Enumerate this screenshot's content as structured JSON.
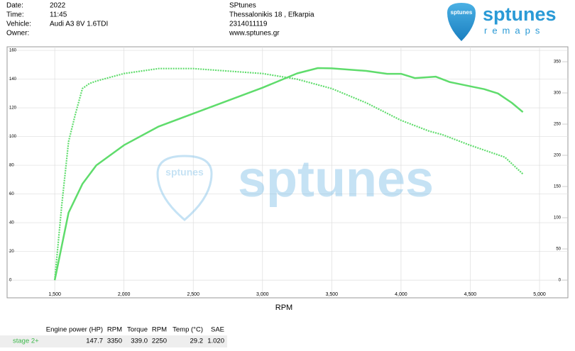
{
  "header": {
    "fields": [
      {
        "label": "Date:",
        "value": "2022"
      },
      {
        "label": "Time:",
        "value": "11:45"
      },
      {
        "label": "Vehicle:",
        "value": "Audi A3 8V 1.6TDI"
      },
      {
        "label": "Owner:"
      }
    ]
  },
  "company": [
    "SPtunes",
    "Thessalonikis 18 , Efkarpia",
    "2314011119",
    "www.sptunes.gr"
  ],
  "logo": {
    "name": "sptunes",
    "tagline": "remaps"
  },
  "chart_data": {
    "type": "line",
    "x_label": "RPM",
    "xlim": [
      1156,
      5205
    ],
    "xticks": [
      {
        "value": 1500,
        "label": "1,500"
      },
      {
        "value": 2000,
        "label": "2,000"
      },
      {
        "value": 2500,
        "label": "2,500"
      },
      {
        "value": 3000,
        "label": "3,000"
      },
      {
        "value": 3500,
        "label": "3,500"
      },
      {
        "value": 4000,
        "label": "4,000"
      },
      {
        "value": 4500,
        "label": "4,500"
      },
      {
        "value": 5000,
        "label": "5,000"
      }
    ],
    "ylim": [
      -12.3,
      162.5
    ],
    "yticks": [
      0,
      20,
      40,
      60,
      80,
      100,
      120,
      140,
      160
    ],
    "y2lim": [
      -28.4,
      373.9
    ],
    "y2ticks": [
      0,
      50,
      100,
      150,
      200,
      250,
      300,
      350
    ],
    "grid": true,
    "series": [
      {
        "color": "#5fdc6c",
        "style": "solid",
        "x": [
          1500,
          1600,
          1700,
          1800,
          2000,
          2250,
          2500,
          2750,
          3000,
          3250,
          3400,
          3500,
          3750,
          3900,
          4000,
          4100,
          4250,
          4350,
          4500,
          4600,
          4700,
          4800,
          4880
        ],
        "values": [
          0,
          47,
          67,
          80,
          94,
          107,
          116,
          125,
          134,
          144,
          147.7,
          147.5,
          145.7,
          143.7,
          143.7,
          140.7,
          141.7,
          138,
          135,
          133,
          130,
          123.5,
          117
        ]
      },
      {
        "color": "#5fdc6c",
        "style": "dotted",
        "axis": "y2",
        "x": [
          1500,
          1550,
          1600,
          1650,
          1700,
          1750,
          1800,
          2000,
          2250,
          2500,
          2750,
          3000,
          3250,
          3500,
          3750,
          4000,
          4200,
          4300,
          4500,
          4750,
          4880
        ],
        "values": [
          0,
          119,
          222,
          267,
          307,
          315,
          319,
          331,
          339,
          339,
          335,
          331,
          322,
          307,
          284,
          256,
          239,
          233,
          216,
          197,
          170
        ]
      }
    ]
  },
  "table": {
    "columns": [
      "Engine power (HP)",
      "RPM",
      "Torque",
      "RPM",
      "Temp (°C)",
      "SAE"
    ],
    "rows": [
      [
        "stage 2+",
        "147.7",
        "3350",
        "339.0",
        "2250",
        "29.2",
        "1.020"
      ]
    ]
  }
}
